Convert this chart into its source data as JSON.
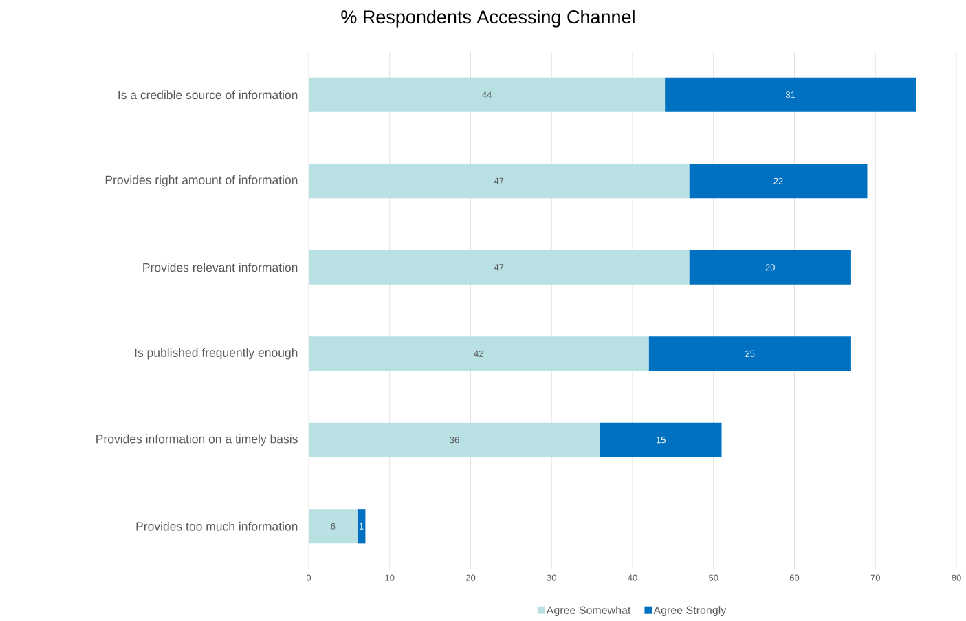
{
  "chart_data": {
    "type": "bar",
    "orientation": "horizontal",
    "stacked": true,
    "title": "% Respondents Accessing Channel",
    "categories": [
      "Is a credible source of information",
      "Provides right amount of information",
      "Provides relevant information",
      "Is published frequently enough",
      "Provides information on a timely basis",
      "Provides too much information"
    ],
    "series": [
      {
        "name": "Agree Somewhat",
        "color": "#b9e0e3",
        "values": [
          44,
          47,
          47,
          42,
          36,
          6
        ]
      },
      {
        "name": "Agree Strongly",
        "color": "#0070c0",
        "values": [
          31,
          22,
          20,
          25,
          15,
          1
        ]
      }
    ],
    "xlim": [
      0,
      80
    ],
    "xticks": [
      0,
      10,
      20,
      30,
      40,
      50,
      60,
      70,
      80
    ],
    "grid": "x",
    "legend": "bottom",
    "data_labels": true
  }
}
